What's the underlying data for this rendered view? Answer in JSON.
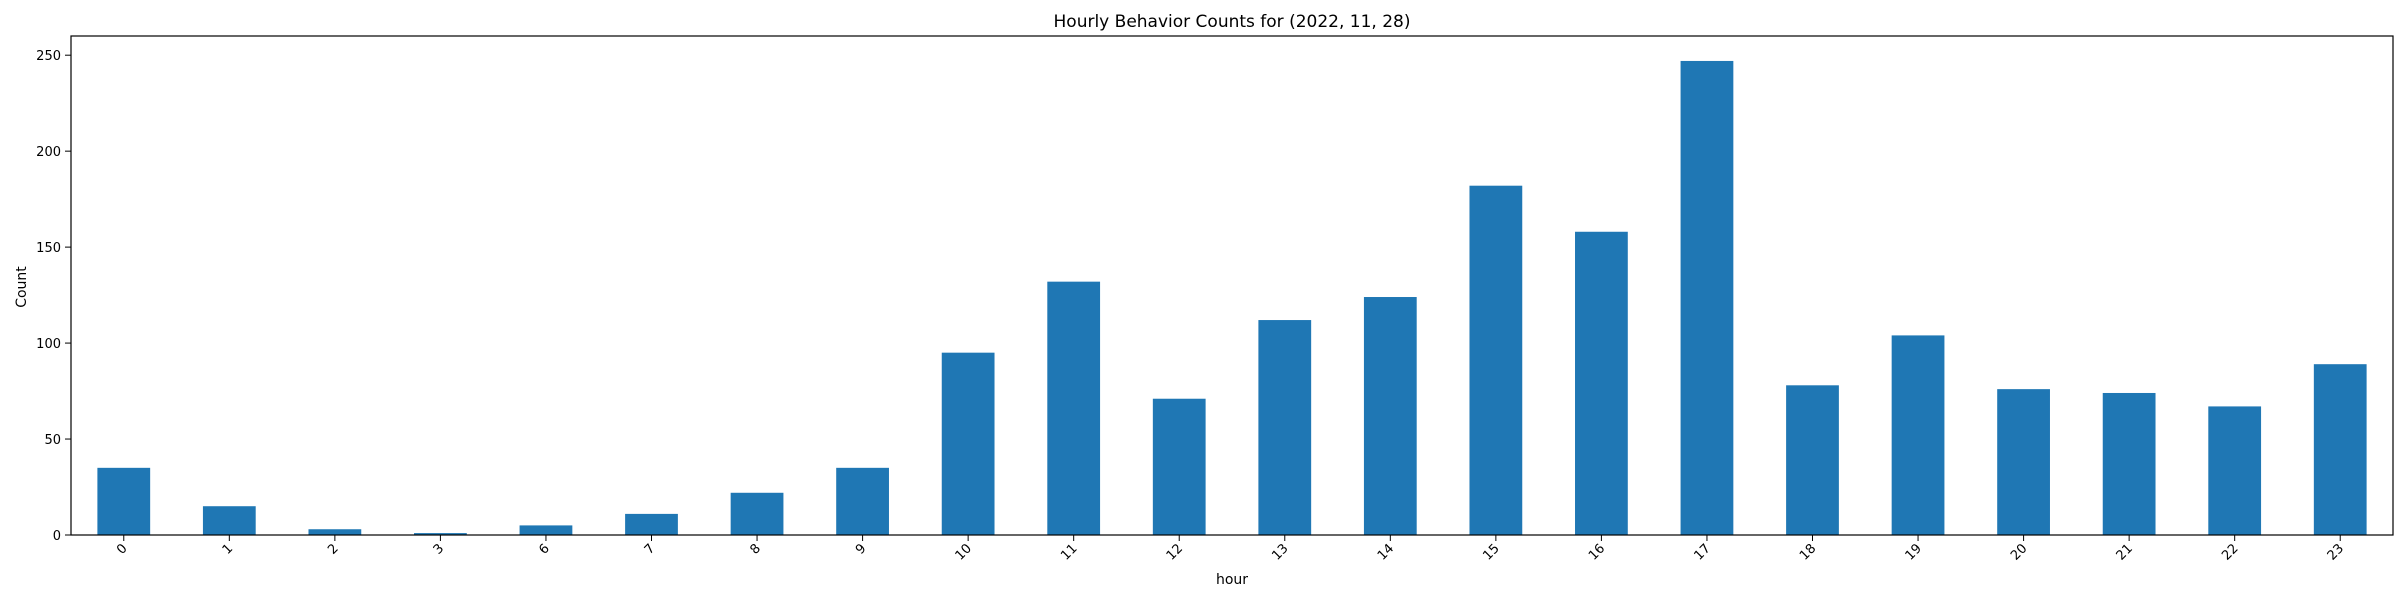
{
  "chart_data": {
    "type": "bar",
    "title": "Hourly Behavior Counts for (2022, 11, 28)",
    "xlabel": "hour",
    "ylabel": "Count",
    "categories": [
      "0",
      "1",
      "2",
      "3",
      "6",
      "7",
      "8",
      "9",
      "10",
      "11",
      "12",
      "13",
      "14",
      "15",
      "16",
      "17",
      "18",
      "19",
      "20",
      "21",
      "22",
      "23"
    ],
    "values": [
      35,
      15,
      3,
      1,
      5,
      11,
      22,
      35,
      95,
      132,
      71,
      112,
      124,
      182,
      158,
      247,
      78,
      104,
      76,
      74,
      67,
      89
    ],
    "ylim": [
      0,
      260
    ],
    "yticks": [
      0,
      50,
      100,
      150,
      200,
      250
    ],
    "grid": false,
    "bar_color": "#1f77b4"
  }
}
